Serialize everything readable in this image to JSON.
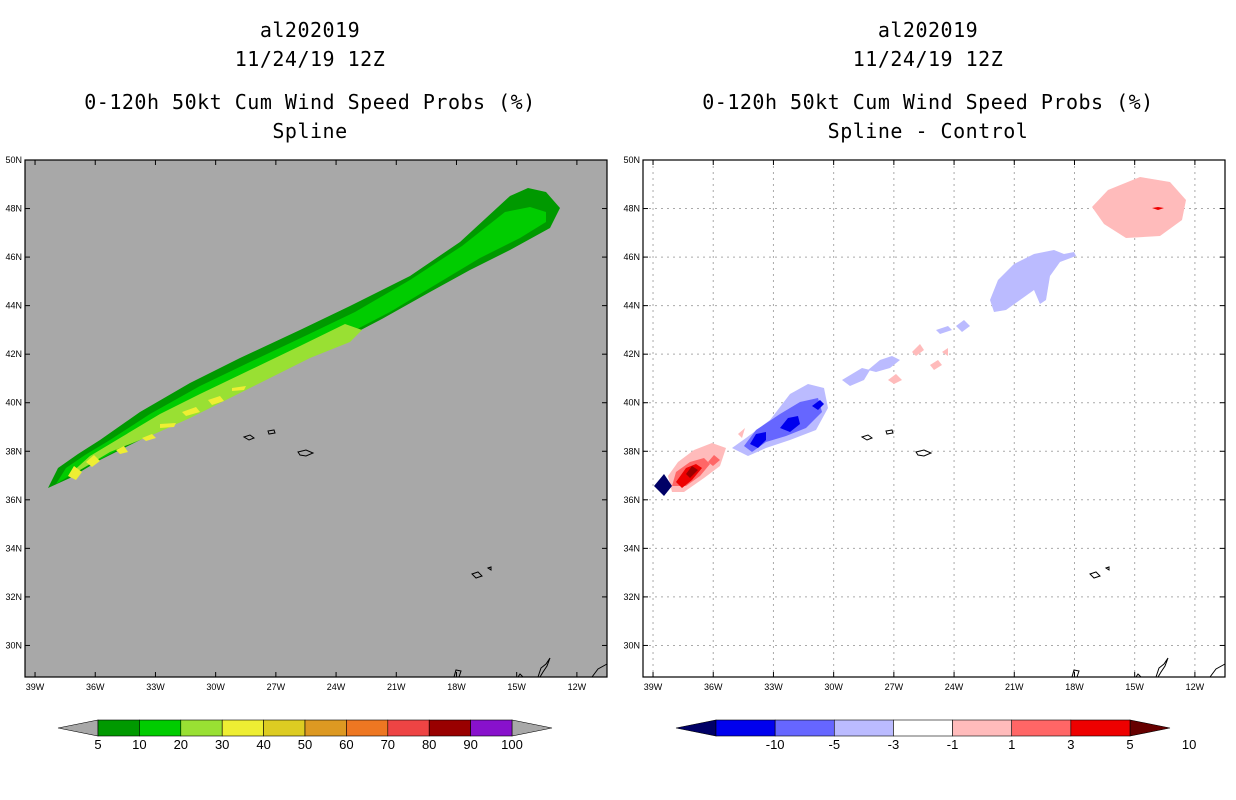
{
  "left_panel": {
    "storm_id": "al202019",
    "datetime": "11/24/19 12Z",
    "product": "0-120h 50kt Cum Wind Speed Probs (%)",
    "subtitle": "Spline"
  },
  "right_panel": {
    "storm_id": "al202019",
    "datetime": "11/24/19 12Z",
    "product": "0-120h 50kt Cum Wind Speed Probs (%)",
    "subtitle": "Spline - Control"
  },
  "map_axes": {
    "lon_labels": [
      "39W",
      "36W",
      "33W",
      "30W",
      "27W",
      "24W",
      "21W",
      "18W",
      "15W",
      "12W"
    ],
    "lat_labels": [
      "30N",
      "32N",
      "34N",
      "36N",
      "38N",
      "40N",
      "42N",
      "44N",
      "46N",
      "48N",
      "50N"
    ],
    "lon_range": [
      -39.5,
      -10.5
    ],
    "lat_range": [
      28.7,
      50
    ]
  },
  "colorbar_prob": {
    "labels": [
      "5",
      "10",
      "20",
      "30",
      "40",
      "50",
      "60",
      "70",
      "80",
      "90",
      "100"
    ],
    "colors": [
      "#009900",
      "#00cc00",
      "#99e033",
      "#eeee33",
      "#ddcc22",
      "#dd9922",
      "#ee7722",
      "#ee4444",
      "#990000",
      "#8811cc"
    ],
    "end_color": "#a8a8a8"
  },
  "colorbar_diff": {
    "labels": [
      "-10",
      "-5",
      "-3",
      "-1",
      "1",
      "3",
      "5",
      "10"
    ],
    "colors": [
      "#0000ee",
      "#6666ff",
      "#bbbbff",
      "#ffffff",
      "#ffbbbb",
      "#ff6666",
      "#ee0000"
    ],
    "low_end": "#000066",
    "high_end": "#660000"
  },
  "colors": {
    "map_background_left": "#a8a8a8",
    "map_background_right": "#ffffff"
  }
}
